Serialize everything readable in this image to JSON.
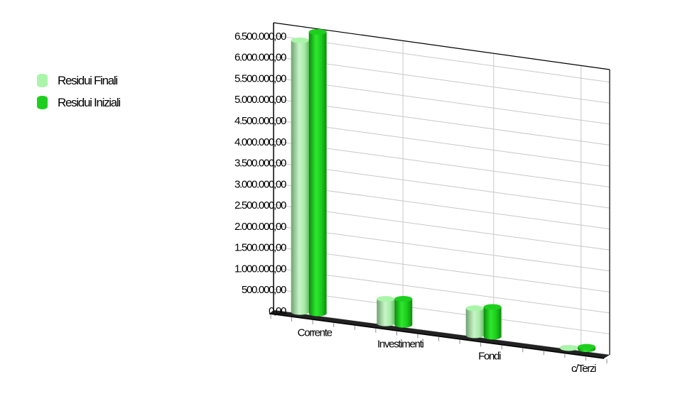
{
  "chart_data": {
    "type": "bar",
    "categories": [
      "Corrente",
      "Investimenti",
      "Fondi",
      "c/Terzi"
    ],
    "series": [
      {
        "name": "Residui Finali",
        "color": "#aaf5aa",
        "values": [
          6500000,
          650000,
          710000,
          60000
        ]
      },
      {
        "name": "Residui Iniziali",
        "color": "#1fcf1f",
        "values": [
          6650000,
          600000,
          690000,
          40000
        ]
      }
    ],
    "ylim": [
      0,
      6500000
    ],
    "ytick_labels": [
      "0,00",
      "500.000,00",
      "1.000.000,00",
      "1.500.000,00",
      "2.000.000,00",
      "2.500.000,00",
      "3.000.000,00",
      "3.500.000,00",
      "4.000.000,00",
      "4.500.000,00",
      "5.000.000,00",
      "5.500.000,00",
      "6.000.000,00",
      "6.500.000,00"
    ],
    "legend_position": "left",
    "grid": true,
    "style": "3d-cylinder"
  }
}
